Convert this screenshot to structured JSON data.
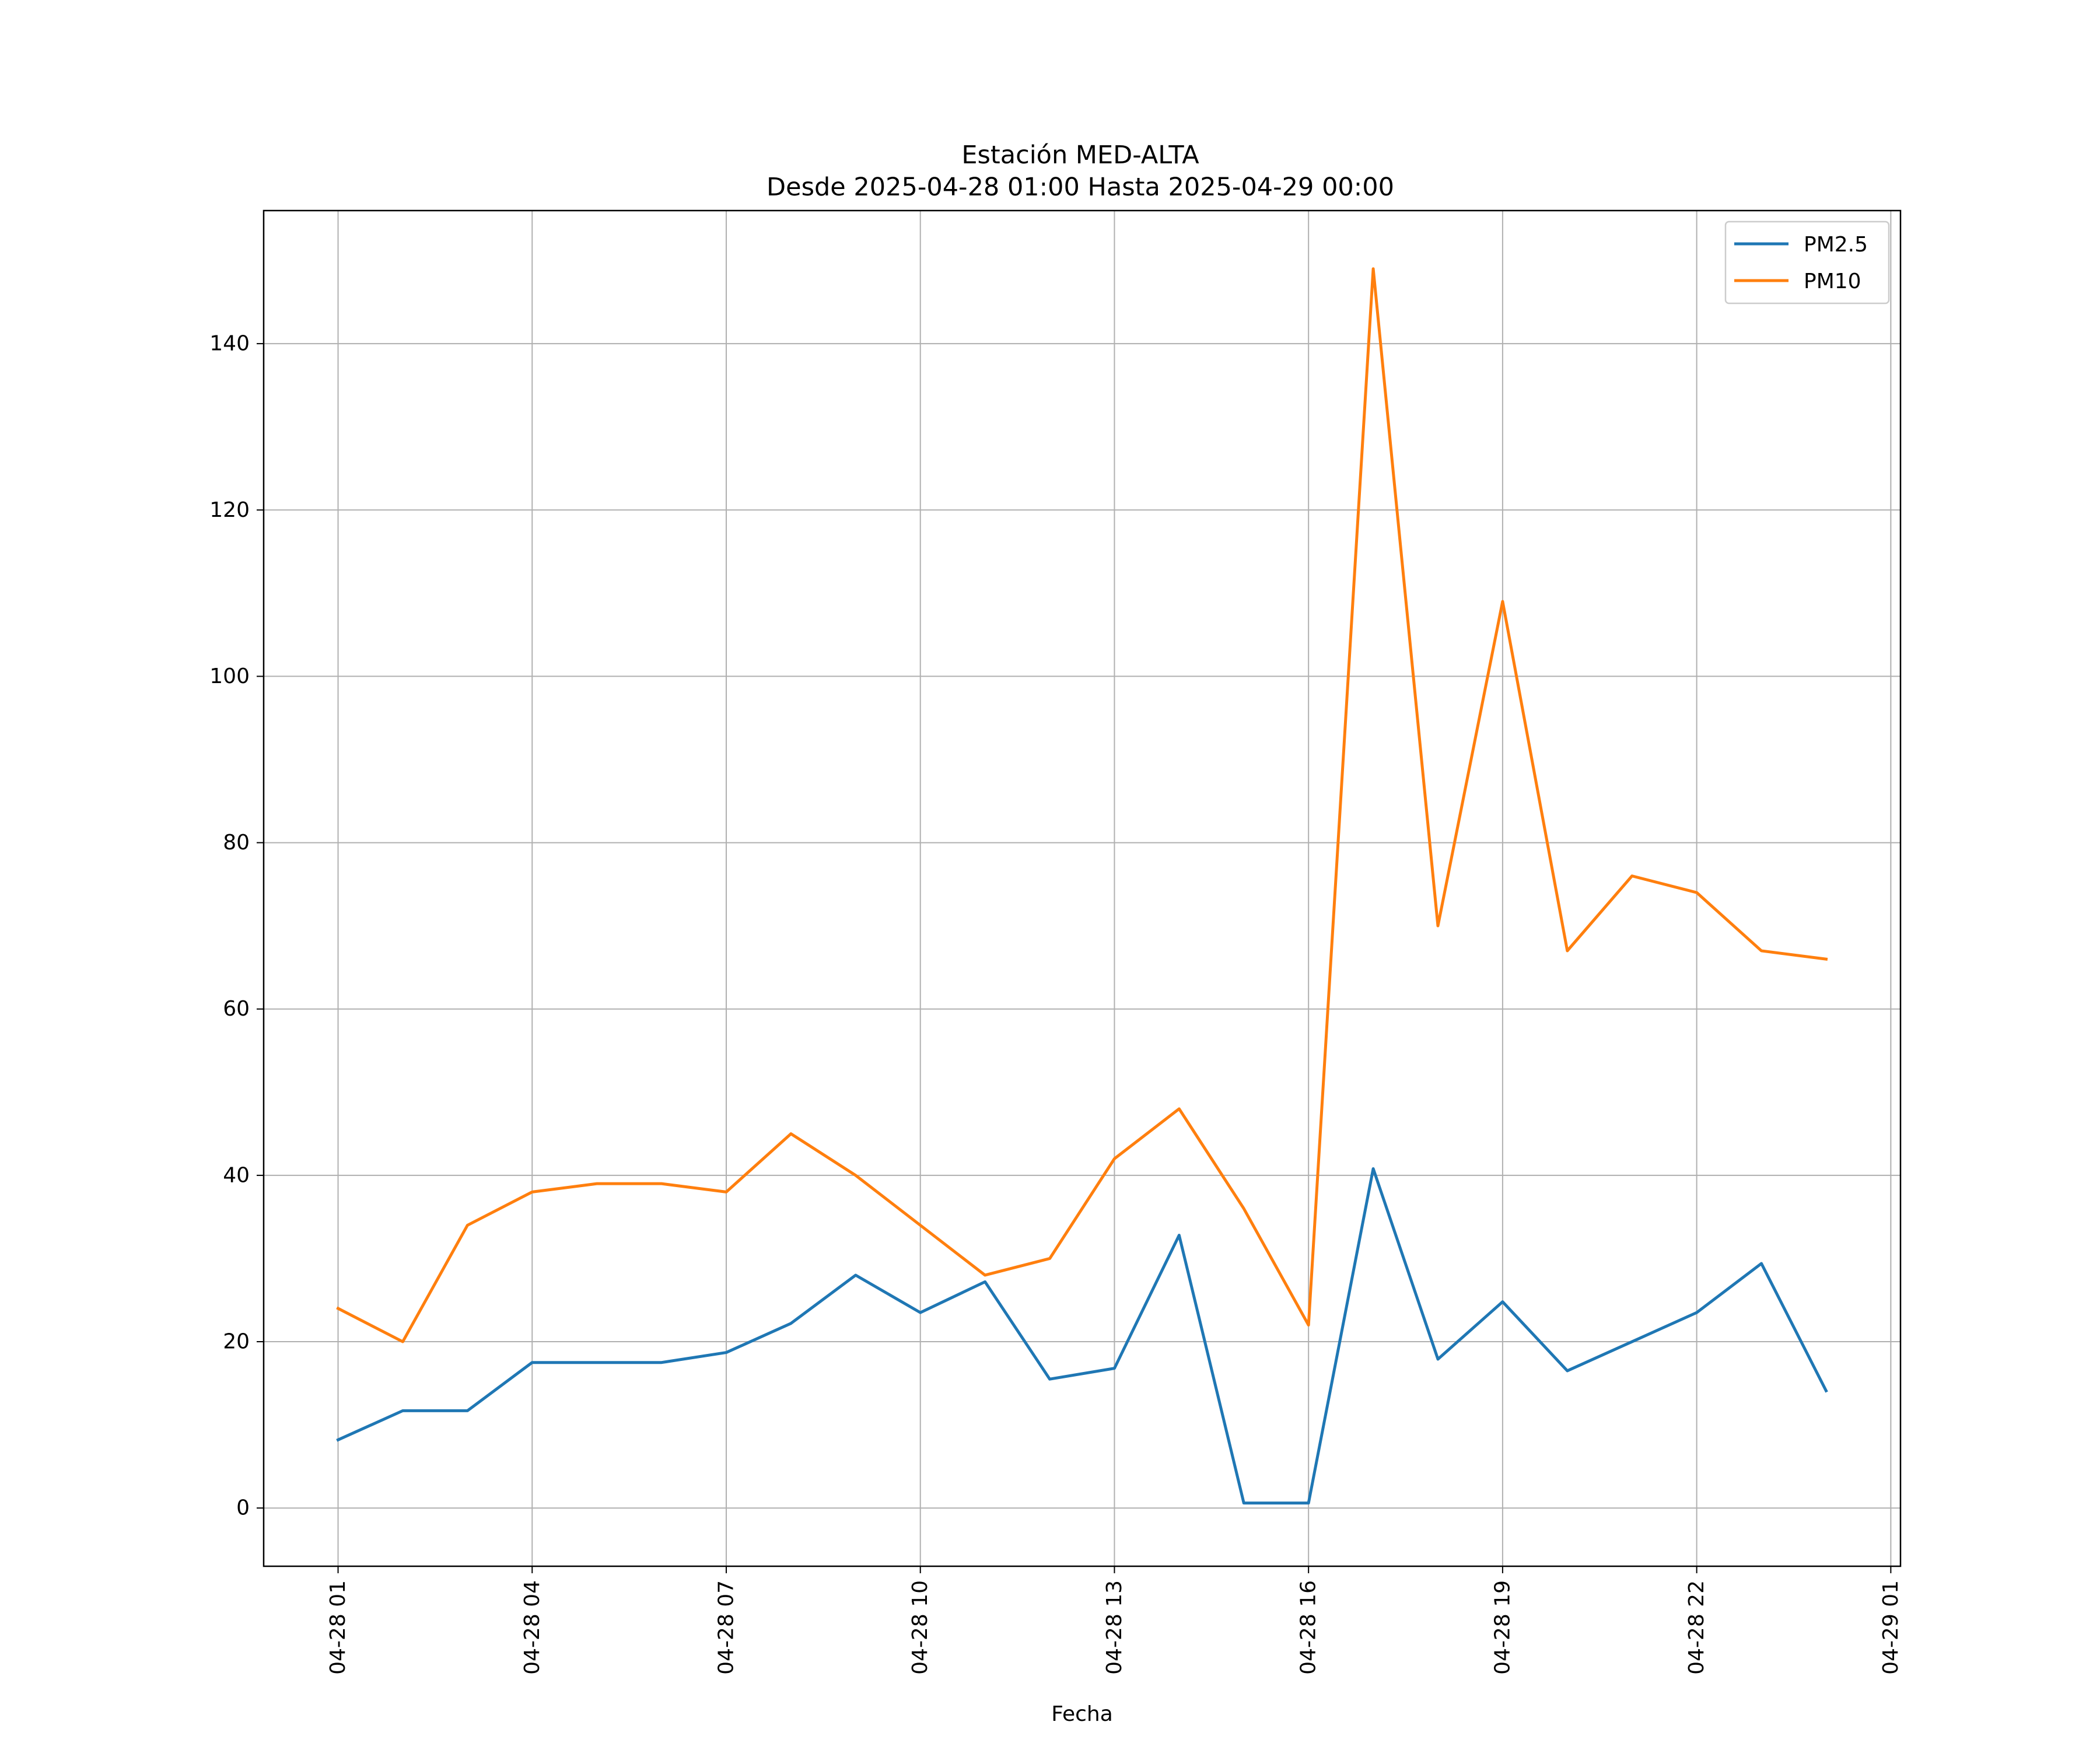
{
  "chart_data": {
    "type": "line",
    "title_line1": "Estación MED-ALTA",
    "title_line2": "Desde 2025-04-28 01:00 Hasta 2025-04-29 00:00",
    "xlabel": "Fecha",
    "ylabel": "",
    "x": [
      "2025-04-28 01:00",
      "2025-04-28 02:00",
      "2025-04-28 03:00",
      "2025-04-28 04:00",
      "2025-04-28 05:00",
      "2025-04-28 06:00",
      "2025-04-28 07:00",
      "2025-04-28 08:00",
      "2025-04-28 09:00",
      "2025-04-28 10:00",
      "2025-04-28 11:00",
      "2025-04-28 12:00",
      "2025-04-28 13:00",
      "2025-04-28 14:00",
      "2025-04-28 15:00",
      "2025-04-28 16:00",
      "2025-04-28 17:00",
      "2025-04-28 18:00",
      "2025-04-28 19:00",
      "2025-04-28 20:00",
      "2025-04-28 21:00",
      "2025-04-28 22:00",
      "2025-04-28 23:00",
      "2025-04-29 00:00"
    ],
    "series": [
      {
        "name": "PM2.5",
        "color": "#1f77b4",
        "values": [
          8.2,
          11.7,
          11.7,
          17.5,
          17.5,
          17.5,
          18.7,
          22.2,
          28.0,
          23.5,
          27.2,
          15.5,
          16.8,
          32.8,
          0.6,
          0.6,
          40.8,
          17.9,
          24.8,
          16.5,
          20.0,
          23.5,
          29.4,
          14.1
        ]
      },
      {
        "name": "PM10",
        "color": "#ff7f0e",
        "values": [
          24,
          20,
          34,
          38,
          39,
          39,
          38,
          45,
          40,
          34,
          28,
          30,
          42,
          48,
          36,
          22,
          149,
          70,
          109,
          67,
          76,
          74,
          67,
          66
        ]
      }
    ],
    "xticks": [
      "04-28 01",
      "04-28 04",
      "04-28 07",
      "04-28 10",
      "04-28 13",
      "04-28 16",
      "04-28 19",
      "04-28 22",
      "04-29 01"
    ],
    "xtick_hours": [
      0,
      3,
      6,
      9,
      12,
      15,
      18,
      21,
      24
    ],
    "yticks": [
      0,
      20,
      40,
      60,
      80,
      100,
      120,
      140
    ],
    "xlim_hours": [
      -1.15,
      24.15
    ],
    "ylim": [
      -7,
      156
    ],
    "grid": true,
    "legend_position": "top-right"
  }
}
